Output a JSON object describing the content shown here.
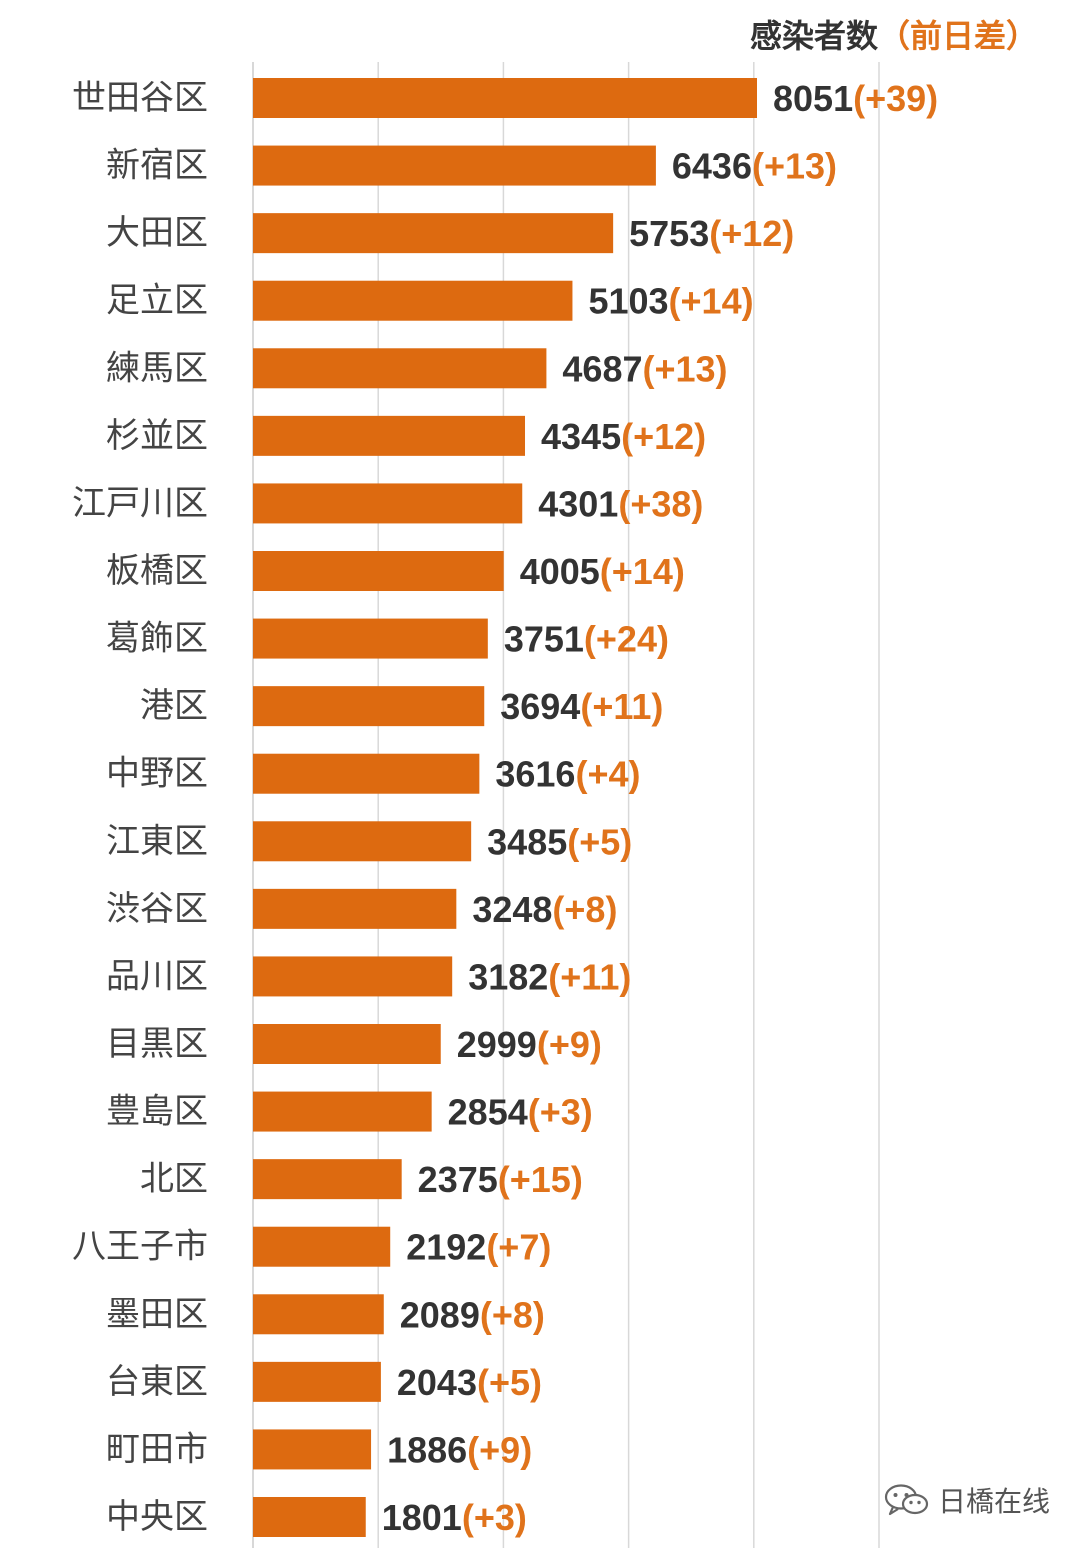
{
  "header": {
    "value_label": "感染者数",
    "diff_label": "（前日差）"
  },
  "watermark": {
    "icon": "wechat-icon",
    "text": "日橋在线"
  },
  "colors": {
    "bar": "#dd6a10",
    "value_text": "#333333",
    "diff_text": "#e0731b",
    "category_text": "#444444",
    "grid": "#d8d8d8"
  },
  "chart_data": {
    "type": "bar",
    "orientation": "horizontal",
    "title": "感染者数（前日差）",
    "grid": true,
    "xlim": [
      0,
      10000
    ],
    "categories": [
      "世田谷区",
      "新宿区",
      "大田区",
      "足立区",
      "練馬区",
      "杉並区",
      "江戸川区",
      "板橋区",
      "葛飾区",
      "港区",
      "中野区",
      "江東区",
      "渋谷区",
      "品川区",
      "目黒区",
      "豊島区",
      "北区",
      "八王子市",
      "墨田区",
      "台東区",
      "町田市",
      "中央区"
    ],
    "values": [
      8051,
      6436,
      5753,
      5103,
      4687,
      4345,
      4301,
      4005,
      3751,
      3694,
      3616,
      3485,
      3248,
      3182,
      2999,
      2854,
      2375,
      2192,
      2089,
      2043,
      1886,
      1801
    ],
    "diff_labels": [
      "(+39)",
      "(+13)",
      "(+12)",
      "(+14)",
      "(+13)",
      "(+12)",
      "(+38)",
      "(+14)",
      "(+24)",
      "(+11)",
      "(+4)",
      "(+5)",
      "(+8)",
      "(+11)",
      "(+9)",
      "(+3)",
      "(+15)",
      "(+7)",
      "(+8)",
      "(+5)",
      "(+9)",
      "(+3)"
    ]
  }
}
